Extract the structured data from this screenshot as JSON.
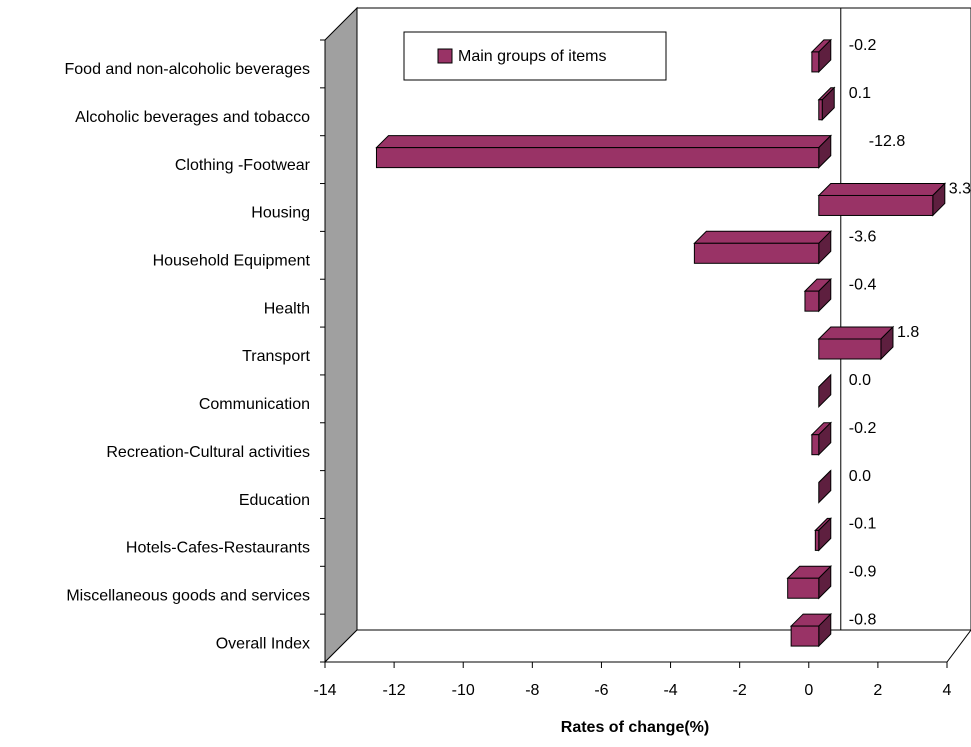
{
  "chart_data": {
    "type": "bar3d-horizontal",
    "x_label": "Rates of change(%)",
    "categories": [
      "Food and non-alcoholic beverages",
      "Alcoholic beverages and tobacco",
      "Clothing -Footwear",
      "Housing",
      "Household Equipment",
      "Health",
      "Transport",
      "Communication",
      "Recreation-Cultural activities",
      "Education",
      "Hotels-Cafes-Restaurants",
      "Miscellaneous goods and services",
      "Overall Index"
    ],
    "series": [
      {
        "name": "Main groups of items",
        "color": "#993366",
        "values": [
          -0.2,
          0.1,
          -12.8,
          3.3,
          -3.6,
          -0.4,
          1.8,
          0,
          -0.2,
          0,
          -0.1,
          -0.9,
          -0.8
        ],
        "value_labels": [
          "-0.2",
          "0.1",
          "-12.8",
          "3.3",
          "-3.6",
          "-0.4",
          "1.8",
          "0.0",
          "-0.2",
          "0.0",
          "-0.1",
          "-0.9",
          "-0.8"
        ]
      }
    ],
    "xlim": [
      -14,
      4
    ],
    "xticks": [
      -14,
      -12,
      -10,
      -8,
      -6,
      -4,
      -2,
      0,
      2,
      4
    ],
    "legend": "top"
  }
}
